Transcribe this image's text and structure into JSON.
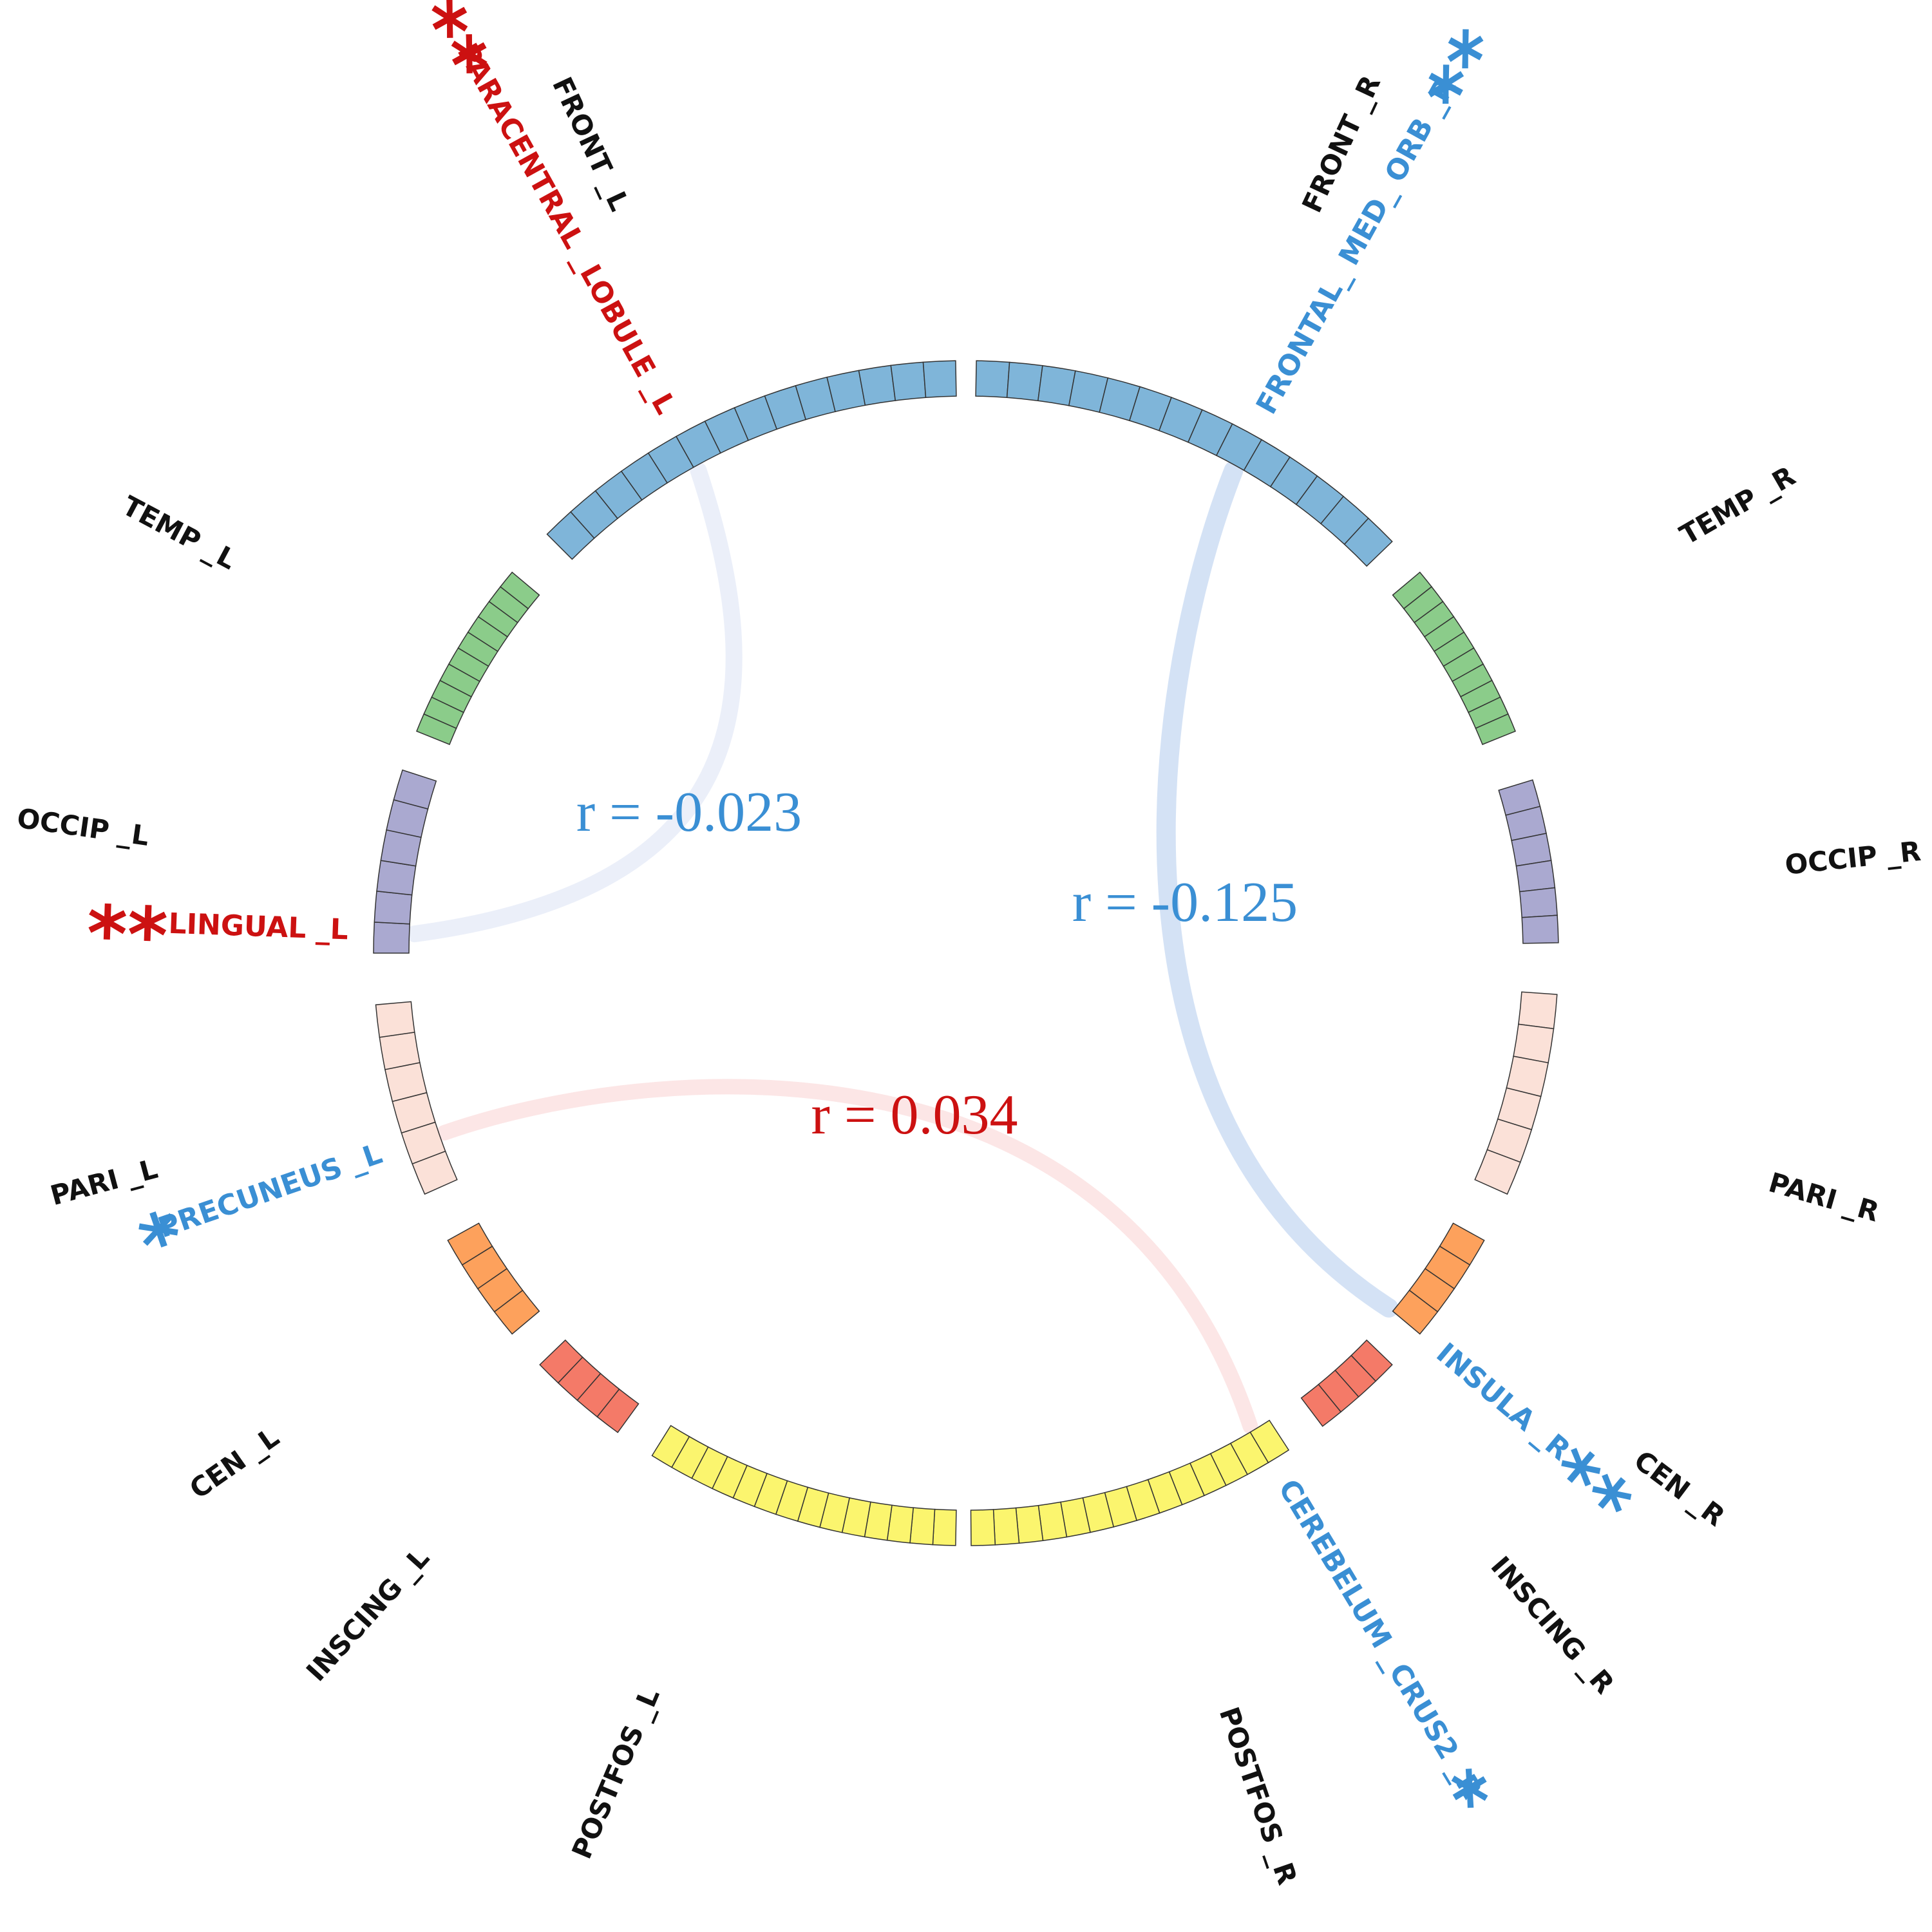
{
  "colors": {
    "FRONT": "#7fb5d9",
    "TEMP": "#8bcc8a",
    "OCCIP": "#aaa9d0",
    "PARI": "#fbe1d8",
    "CEN": "#fda15c",
    "INSCING": "#f47a68",
    "POSTFOS": "#fbf56e",
    "positive": "#cc1111",
    "negative": "#3a8fd4"
  },
  "lobes": [
    {
      "id": "FRONT_R",
      "label": "FRONT _R"
    },
    {
      "id": "TEMP_R",
      "label": "TEMP _R"
    },
    {
      "id": "OCCIP_R",
      "label": "OCCIP _R"
    },
    {
      "id": "PARI_R",
      "label": "PARI _R"
    },
    {
      "id": "CEN_R",
      "label": "CEN _R"
    },
    {
      "id": "INSCING_R",
      "label": "INSCING _R"
    },
    {
      "id": "POSTFOS_R",
      "label": "POSTFOS _R"
    },
    {
      "id": "POSTFOS_L",
      "label": "POSTFOS _L"
    },
    {
      "id": "INSCING_L",
      "label": "INSCING _L"
    },
    {
      "id": "CEN_L",
      "label": "CEN _L"
    },
    {
      "id": "PARI_L",
      "label": "PARI _L"
    },
    {
      "id": "OCCIP_L",
      "label": "OCCIP _L"
    },
    {
      "id": "TEMP_L",
      "label": "TEMP _L"
    },
    {
      "id": "FRONT_L",
      "label": "FRONT _L"
    }
  ],
  "regions": [
    {
      "id": "frontal-med-orb-r",
      "label": "FRONTAL_ MED_ ORB _R",
      "stars": "**",
      "sign": "negative"
    },
    {
      "id": "insula-r",
      "label": "INSULA _R",
      "stars": "**",
      "sign": "negative"
    },
    {
      "id": "cerebelum-crus2-r",
      "label": "CEREBELUM _CRUS2 _R",
      "stars": "*",
      "sign": "negative"
    },
    {
      "id": "paracentral-lobule-l",
      "label": "PARACENTRAL _LOBULE _L",
      "stars": "**",
      "sign": "positive"
    },
    {
      "id": "lingual-l",
      "label": "LINGUAL _L",
      "stars": "**",
      "sign": "positive"
    },
    {
      "id": "precuneus-l",
      "label": "PRECUNEUS _L",
      "stars": "*",
      "sign": "negative"
    }
  ],
  "links": [
    {
      "id": "link-frontal-insula",
      "text": "r = -0.125",
      "value": -0.125
    },
    {
      "id": "link-paracentral-lingual",
      "text": "r = -0.023",
      "value": -0.023
    },
    {
      "id": "link-precuneus-cerebelum",
      "text": "r = 0.034",
      "value": 0.034
    }
  ]
}
